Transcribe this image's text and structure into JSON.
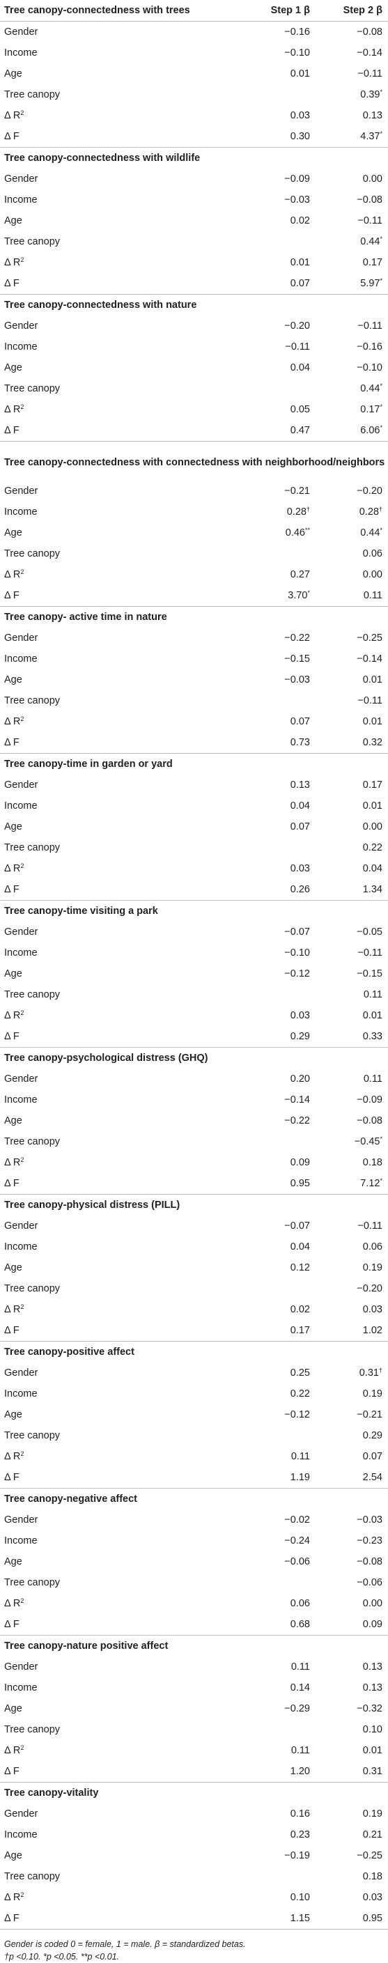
{
  "header": {
    "col1": "Tree canopy-connectedness with trees",
    "col2": "Step 1 β",
    "col3": "Step 2 β"
  },
  "sections": [
    {
      "title": "",
      "rows": [
        {
          "label": "Gender",
          "s1": "−0.16",
          "s2": "−0.08"
        },
        {
          "label": "Income",
          "s1": "−0.10",
          "s2": "−0.14"
        },
        {
          "label": "Age",
          "s1": "0.01",
          "s2": "−0.11"
        },
        {
          "label": "Tree canopy",
          "s1": "",
          "s2": "0.39",
          "s2_sup": "*"
        },
        {
          "label": "Δ R",
          "label_sup": "2",
          "s1": "0.03",
          "s2": "0.13"
        },
        {
          "label": "Δ F",
          "s1": "0.30",
          "s2": "4.37",
          "s2_sup": "*"
        }
      ]
    },
    {
      "title": "Tree canopy-connectedness with wildlife",
      "rows": [
        {
          "label": "Gender",
          "s1": "−0.09",
          "s2": "0.00"
        },
        {
          "label": "Income",
          "s1": "−0.03",
          "s2": "−0.08"
        },
        {
          "label": "Age",
          "s1": "0.02",
          "s2": "−0.11"
        },
        {
          "label": "Tree canopy",
          "s1": "",
          "s2": "0.44",
          "s2_sup": "*"
        },
        {
          "label": "Δ R",
          "label_sup": "2",
          "s1": "0.01",
          "s2": "0.17"
        },
        {
          "label": "Δ F",
          "s1": "0.07",
          "s2": "5.97",
          "s2_sup": "*"
        }
      ]
    },
    {
      "title": "Tree canopy-connectedness with nature",
      "rows": [
        {
          "label": "Gender",
          "s1": "−0.20",
          "s2": "−0.11"
        },
        {
          "label": "Income",
          "s1": "−0.11",
          "s2": "−0.16"
        },
        {
          "label": "Age",
          "s1": "0.04",
          "s2": "−0.10"
        },
        {
          "label": "Tree canopy",
          "s1": "",
          "s2": "0.44",
          "s2_sup": "*"
        },
        {
          "label": "Δ R",
          "label_sup": "2",
          "s1": "0.05",
          "s2": "0.17",
          "s2_sup": "*"
        },
        {
          "label": "Δ F",
          "s1": "0.47",
          "s2": "6.06",
          "s2_sup": "*"
        }
      ]
    },
    {
      "title": "Tree canopy-connectedness with connectedness with neighborhood/neighbors",
      "two_line": true,
      "rows": [
        {
          "label": "Gender",
          "s1": "−0.21",
          "s2": "−0.20"
        },
        {
          "label": "Income",
          "s1": "0.28",
          "s1_sup": "†",
          "s2": "0.28",
          "s2_sup": "†"
        },
        {
          "label": "Age",
          "s1": "0.46",
          "s1_sup": "**",
          "s2": "0.44",
          "s2_sup": "*"
        },
        {
          "label": "Tree canopy",
          "s1": "",
          "s2": "0.06"
        },
        {
          "label": "Δ R",
          "label_sup": "2",
          "s1": "0.27",
          "s2": "0.00"
        },
        {
          "label": "Δ F",
          "s1": "3.70",
          "s1_sup": "*",
          "s2": "0.11"
        }
      ]
    },
    {
      "title": "Tree canopy- active time in nature",
      "rows": [
        {
          "label": "Gender",
          "s1": "−0.22",
          "s2": "−0.25"
        },
        {
          "label": "Income",
          "s1": "−0.15",
          "s2": "−0.14"
        },
        {
          "label": "Age",
          "s1": "−0.03",
          "s2": "0.01"
        },
        {
          "label": "Tree canopy",
          "s1": "",
          "s2": "−0.11"
        },
        {
          "label": "Δ R",
          "label_sup": "2",
          "s1": "0.07",
          "s2": "0.01"
        },
        {
          "label": "Δ F",
          "s1": "0.73",
          "s2": "0.32"
        }
      ]
    },
    {
      "title": "Tree canopy-time in garden or yard",
      "rows": [
        {
          "label": "Gender",
          "s1": "0.13",
          "s2": "0.17"
        },
        {
          "label": "Income",
          "s1": "0.04",
          "s2": "0.01"
        },
        {
          "label": "Age",
          "s1": "0.07",
          "s2": "0.00"
        },
        {
          "label": "Tree canopy",
          "s1": "",
          "s2": "0.22"
        },
        {
          "label": "Δ R",
          "label_sup": "2",
          "s1": "0.03",
          "s2": "0.04"
        },
        {
          "label": "Δ F",
          "s1": "0.26",
          "s2": "1.34"
        }
      ]
    },
    {
      "title": "Tree canopy-time visiting a park",
      "rows": [
        {
          "label": "Gender",
          "s1": "−0.07",
          "s2": "−0.05"
        },
        {
          "label": "Income",
          "s1": "−0.10",
          "s2": "−0.11"
        },
        {
          "label": "Age",
          "s1": "−0.12",
          "s2": "−0.15"
        },
        {
          "label": "Tree canopy",
          "s1": "",
          "s2": "0.11"
        },
        {
          "label": "Δ R",
          "label_sup": "2",
          "s1": "0.03",
          "s2": "0.01"
        },
        {
          "label": "Δ F",
          "s1": "0.29",
          "s2": "0.33"
        }
      ]
    },
    {
      "title": "Tree canopy-psychological distress (GHQ)",
      "rows": [
        {
          "label": "Gender",
          "s1": "0.20",
          "s2": "0.11"
        },
        {
          "label": "Income",
          "s1": "−0.14",
          "s2": "−0.09"
        },
        {
          "label": "Age",
          "s1": "−0.22",
          "s2": "−0.08"
        },
        {
          "label": "Tree canopy",
          "s1": "",
          "s2": "−0.45",
          "s2_sup": "*"
        },
        {
          "label": "Δ R",
          "label_sup": "2",
          "s1": "0.09",
          "s2": "0.18"
        },
        {
          "label": "Δ F",
          "s1": "0.95",
          "s2": "7.12",
          "s2_sup": "*"
        }
      ]
    },
    {
      "title": "Tree canopy-physical distress (PILL)",
      "rows": [
        {
          "label": "Gender",
          "s1": "−0.07",
          "s2": "−0.11"
        },
        {
          "label": "Income",
          "s1": "0.04",
          "s2": "0.06"
        },
        {
          "label": "Age",
          "s1": "0.12",
          "s2": "0.19"
        },
        {
          "label": "Tree canopy",
          "s1": "",
          "s2": "−0.20"
        },
        {
          "label": "Δ R",
          "label_sup": "2",
          "s1": "0.02",
          "s2": "0.03"
        },
        {
          "label": "Δ F",
          "s1": "0.17",
          "s2": "1.02"
        }
      ]
    },
    {
      "title": "Tree canopy-positive affect",
      "rows": [
        {
          "label": "Gender",
          "s1": "0.25",
          "s2": "0.31",
          "s2_sup": "†"
        },
        {
          "label": "Income",
          "s1": "0.22",
          "s2": "0.19"
        },
        {
          "label": "Age",
          "s1": "−0.12",
          "s2": "−0.21"
        },
        {
          "label": "Tree canopy",
          "s1": "",
          "s2": "0.29"
        },
        {
          "label": "Δ R",
          "label_sup": "2",
          "s1": "0.11",
          "s2": "0.07"
        },
        {
          "label": "Δ F",
          "s1": "1.19",
          "s2": "2.54"
        }
      ]
    },
    {
      "title": "Tree canopy-negative affect",
      "rows": [
        {
          "label": "Gender",
          "s1": "−0.02",
          "s2": "−0.03"
        },
        {
          "label": "Income",
          "s1": "−0.24",
          "s2": "−0.23"
        },
        {
          "label": "Age",
          "s1": "−0.06",
          "s2": "−0.08"
        },
        {
          "label": "Tree canopy",
          "s1": "",
          "s2": "−0.06"
        },
        {
          "label": "Δ R",
          "label_sup": "2",
          "s1": "0.06",
          "s2": "0.00"
        },
        {
          "label": "Δ F",
          "s1": "0.68",
          "s2": "0.09"
        }
      ]
    },
    {
      "title": "Tree canopy-nature positive affect",
      "rows": [
        {
          "label": "Gender",
          "s1": "0.11",
          "s2": "0.13"
        },
        {
          "label": "Income",
          "s1": "0.14",
          "s2": "0.13"
        },
        {
          "label": "Age",
          "s1": "−0.29",
          "s2": "−0.32"
        },
        {
          "label": "Tree canopy",
          "s1": "",
          "s2": "0.10"
        },
        {
          "label": "Δ R",
          "label_sup": "2",
          "s1": "0.11",
          "s2": "0.01"
        },
        {
          "label": "Δ F",
          "s1": "1.20",
          "s2": "0.31"
        }
      ]
    },
    {
      "title": "Tree canopy-vitality",
      "rows": [
        {
          "label": "Gender",
          "s1": "0.16",
          "s2": "0.19"
        },
        {
          "label": "Income",
          "s1": "0.23",
          "s2": "0.21"
        },
        {
          "label": "Age",
          "s1": "−0.19",
          "s2": "−0.25"
        },
        {
          "label": "Tree canopy",
          "s1": "",
          "s2": "0.18"
        },
        {
          "label": "Δ R",
          "label_sup": "2",
          "s1": "0.10",
          "s2": "0.03"
        },
        {
          "label": "Δ F",
          "s1": "1.15",
          "s2": "0.95"
        }
      ]
    }
  ],
  "notes": {
    "line1": "Gender is coded 0 = female, 1 = male. β = standardized betas.",
    "line2": "†p <0.10. *p <0.05. **p <0.01."
  }
}
